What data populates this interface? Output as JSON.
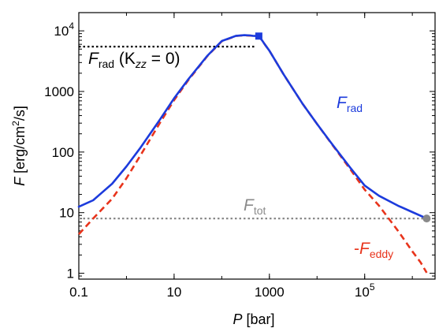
{
  "chart_data": {
    "type": "line",
    "xscale": "log",
    "yscale": "log",
    "xlim": [
      0.1,
      3000000
    ],
    "ylim": [
      0.8,
      20000
    ],
    "xticks": [
      {
        "value": 0.1,
        "label": "0.1"
      },
      {
        "value": 10,
        "label": "10"
      },
      {
        "value": 1000,
        "label": "1000"
      },
      {
        "value": 100000,
        "label": "10",
        "exp": "5"
      }
    ],
    "yticks": [
      {
        "value": 1,
        "label": "1"
      },
      {
        "value": 10,
        "label": "10"
      },
      {
        "value": 100,
        "label": "100"
      },
      {
        "value": 1000,
        "label": "1000"
      },
      {
        "value": 10000,
        "label": "10",
        "exp": "4"
      }
    ],
    "xlabel": {
      "main": "P",
      "unit": " [bar]"
    },
    "ylabel": {
      "main": "F",
      "unit_a": " [erg/cm",
      "unit_sup": "2",
      "unit_b": "/s]"
    },
    "grid": false,
    "legend": "none",
    "colors": {
      "blue": "#1c3bdc",
      "red": "#e8341c",
      "gray": "#8a8a8a",
      "black": "#000000"
    },
    "series": [
      {
        "name": "F_rad",
        "color": "#1c3bdc",
        "style": "solid",
        "x": [
          0.1,
          0.2,
          0.5,
          1,
          2,
          5,
          10,
          20,
          50,
          100,
          200,
          300,
          400,
          450,
          500,
          550,
          600,
          650,
          700,
          800,
          1000,
          2000,
          5000,
          10000,
          20000,
          50000,
          100000,
          200000,
          500000,
          1000000,
          2000000
        ],
        "y": [
          12.5,
          16,
          30,
          58,
          120,
          340,
          770,
          1600,
          3900,
          6800,
          8300,
          8500,
          8400,
          8300,
          8250,
          8200,
          8000,
          7500,
          7000,
          6000,
          4700,
          1900,
          620,
          290,
          140,
          55,
          28,
          19,
          13,
          10.2,
          8
        ]
      },
      {
        "name": "-F_eddy",
        "color": "#e8341c",
        "style": "dashed",
        "x": [
          0.1,
          0.2,
          0.5,
          1,
          2,
          5,
          10,
          20,
          50,
          100,
          200,
          300,
          400,
          500,
          600,
          650,
          700,
          800,
          1000,
          2000,
          5000,
          10000,
          20000,
          50000,
          100000,
          200000,
          500000,
          1000000,
          1500000,
          2000000
        ],
        "y": [
          4.4,
          8,
          17,
          37,
          90,
          300,
          720,
          1550,
          3850,
          6750,
          8250,
          8450,
          8350,
          8250,
          8000,
          7500,
          7000,
          6000,
          4700,
          1900,
          620,
          290,
          138,
          52,
          24,
          13,
          5,
          2.3,
          1.5,
          1.02
        ]
      }
    ],
    "reference_lines": [
      {
        "name": "F_rad (Kzz = 0)",
        "y": 5500,
        "x_from": 0.1,
        "x_to": 500,
        "color": "#000000",
        "style": "dotted"
      },
      {
        "name": "F_tot",
        "y": 8,
        "x_from": 0.1,
        "x_to": 2000000,
        "color": "#8a8a8a",
        "style": "dotted"
      }
    ],
    "markers": [
      {
        "x": 600,
        "y": 8200,
        "shape": "square",
        "color": "#1c3bdc"
      },
      {
        "x": 2000000,
        "y": 8,
        "shape": "circle",
        "color": "#8a8a8a"
      }
    ],
    "annotations": {
      "frad_k0": {
        "main": "F",
        "sub": "rad",
        "rest_a": " (K",
        "sub2": "zz",
        "rest_b": " = 0)"
      },
      "frad": {
        "main": "F",
        "sub": "rad"
      },
      "ftot": {
        "main": "F",
        "sub": "tot"
      },
      "feddy": {
        "prefix": "-",
        "main": "F",
        "sub": "eddy"
      }
    }
  }
}
